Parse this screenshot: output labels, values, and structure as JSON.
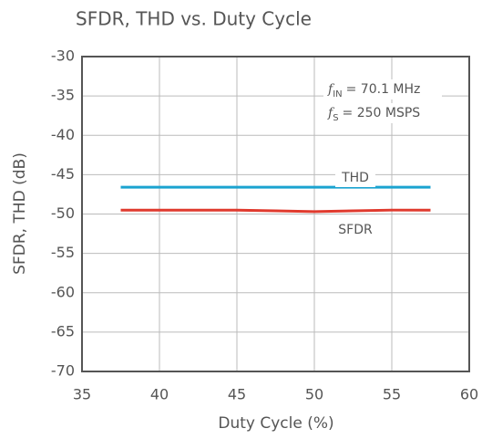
{
  "chart_data": {
    "type": "line",
    "title": "SFDR, THD vs. Duty Cycle",
    "xlabel": "Duty Cycle (%)",
    "ylabel": "SFDR, THD (dB)",
    "x": [
      37.5,
      40,
      42.5,
      45,
      47.5,
      50,
      52.5,
      55,
      57.5
    ],
    "series": [
      {
        "name": "THD",
        "color": "#1ba3d0",
        "values": [
          -46.6,
          -46.6,
          -46.6,
          -46.6,
          -46.6,
          -46.6,
          -46.6,
          -46.6,
          -46.6
        ]
      },
      {
        "name": "SFDR",
        "color": "#e03a2e",
        "values": [
          -49.5,
          -49.5,
          -49.5,
          -49.5,
          -49.6,
          -49.7,
          -49.6,
          -49.5,
          -49.5
        ]
      }
    ],
    "xlim": [
      35,
      60
    ],
    "xticks": [
      35,
      40,
      45,
      50,
      55,
      60
    ],
    "ylim": [
      -70,
      -30
    ],
    "yticks": [
      -70,
      -65,
      -60,
      -55,
      -50,
      -45,
      -40,
      -35,
      -30
    ],
    "grid": true,
    "annotations": [
      {
        "symbol": "f",
        "sub": "IN",
        "text": "= 70.1 MHz"
      },
      {
        "symbol": "f",
        "sub": "S",
        "text": "= 250 MSPS"
      }
    ]
  }
}
